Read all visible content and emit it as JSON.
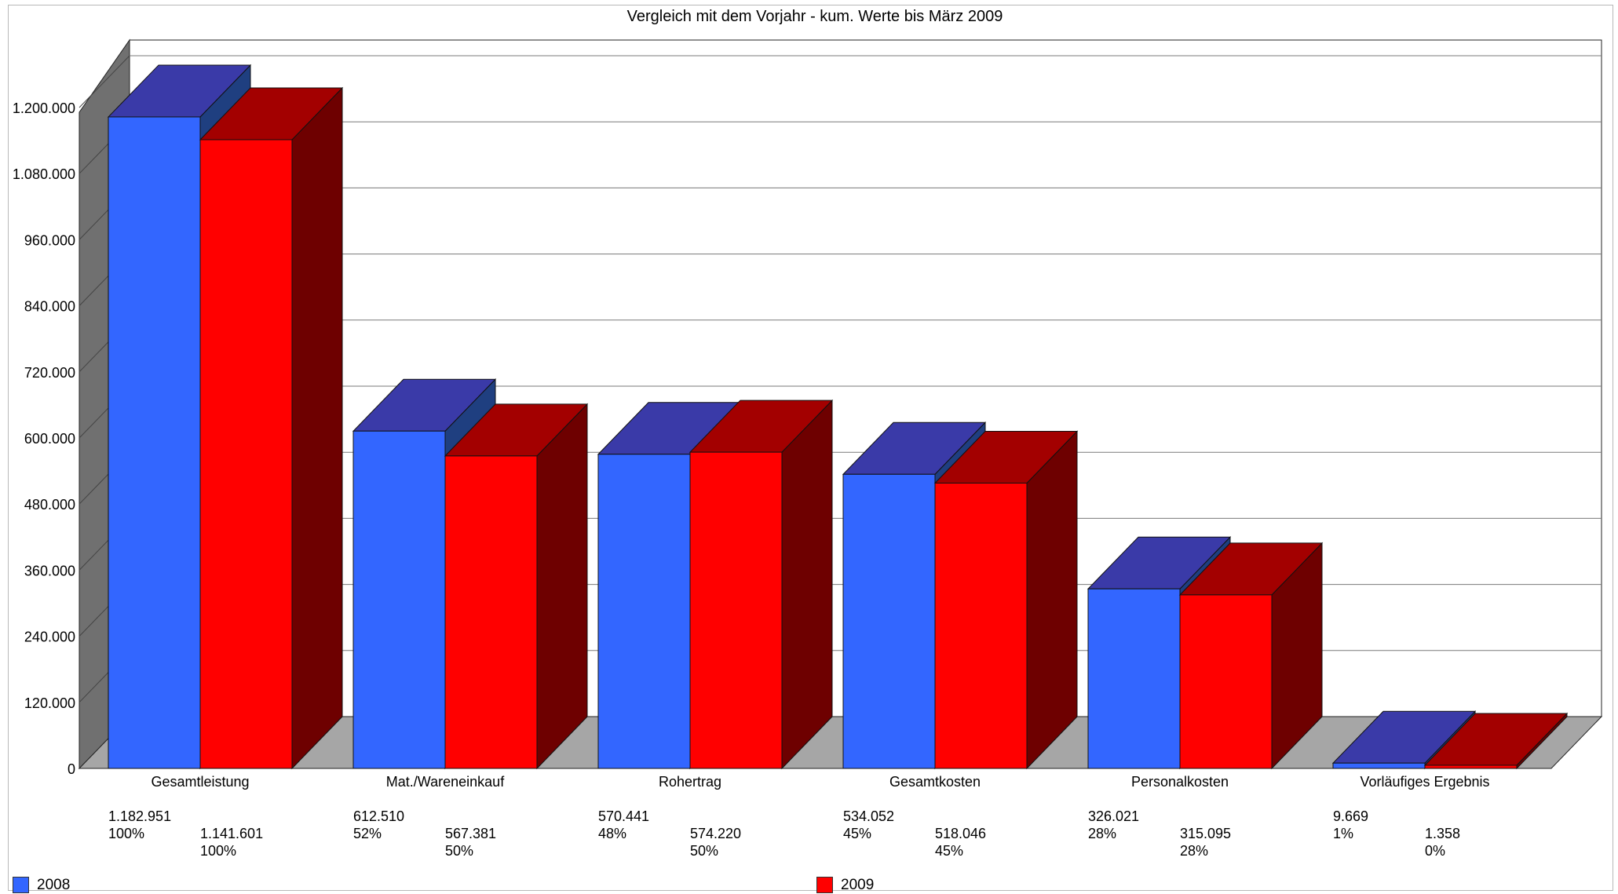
{
  "chart_data": {
    "type": "bar",
    "title": "Vergleich mit dem Vorjahr - kum. Werte bis März 2009",
    "xlabel": "",
    "ylabel": "",
    "ylim": [
      0,
      1200000
    ],
    "ytick_labels": [
      "0",
      "120.000",
      "240.000",
      "360.000",
      "480.000",
      "600.000",
      "720.000",
      "840.000",
      "960.000",
      "1.080.000",
      "1.200.000"
    ],
    "grid": true,
    "three_d": true,
    "legend_placement": "bottom",
    "categories": [
      "Gesamtleistung",
      "Mat./Wareneinkauf",
      "Rohertrag",
      "Gesamtkosten",
      "Personalkosten",
      "Vorläufiges Ergebnis"
    ],
    "series": [
      {
        "name": "2008",
        "color": "#3366ff",
        "values": [
          1182951,
          612510,
          570441,
          534052,
          326021,
          9669
        ],
        "value_labels": [
          "1.182.951",
          "612.510",
          "570.441",
          "534.052",
          "326.021",
          "9.669"
        ],
        "percent_labels": [
          "100%",
          "52%",
          "48%",
          "45%",
          "28%",
          "1%"
        ]
      },
      {
        "name": "2009",
        "color": "#ff0000",
        "values": [
          1141601,
          567381,
          574220,
          518046,
          315095,
          1358
        ],
        "value_labels": [
          "1.141.601",
          "567.381",
          "574.220",
          "518.046",
          "315.095",
          "1.358"
        ],
        "percent_labels": [
          "100%",
          "50%",
          "50%",
          "45%",
          "28%",
          "0%"
        ]
      }
    ]
  },
  "legend": {
    "items": [
      {
        "label": "2008",
        "color": "#3366ff"
      },
      {
        "label": "2009",
        "color": "#ff0000"
      }
    ]
  }
}
